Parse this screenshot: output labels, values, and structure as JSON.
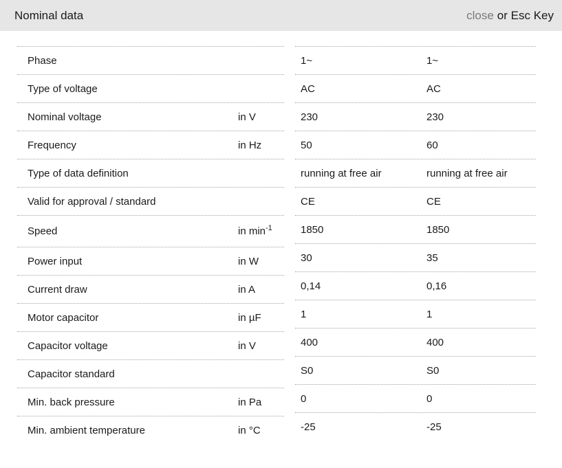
{
  "header": {
    "title": "Nominal data",
    "close_label": "close",
    "esc_label": "or Esc Key"
  },
  "colors": {
    "header_bg": "#e6e6e6",
    "close_link": "#7a7a7a",
    "text": "#1a1a1a",
    "divider": "#a3a3a3"
  },
  "table": {
    "rows": [
      {
        "label": "Phase",
        "unit": "",
        "values": [
          "1~",
          "1~"
        ]
      },
      {
        "label": "Type of voltage",
        "unit": "",
        "values": [
          "AC",
          "AC"
        ]
      },
      {
        "label": "Nominal voltage",
        "unit": "in V",
        "values": [
          "230",
          "230"
        ]
      },
      {
        "label": "Frequency",
        "unit": "in Hz",
        "values": [
          "50",
          "60"
        ]
      },
      {
        "label": "Type of data definition",
        "unit": "",
        "values": [
          "running at free air",
          "running at free air"
        ]
      },
      {
        "label": "Valid for approval / standard",
        "unit": "",
        "values": [
          "CE",
          "CE"
        ]
      },
      {
        "label": "Speed",
        "unit": "in min",
        "unit_sup": "-1",
        "values": [
          "1850",
          "1850"
        ]
      },
      {
        "label": "Power input",
        "unit": "in W",
        "values": [
          "30",
          "35"
        ]
      },
      {
        "label": "Current draw",
        "unit": "in A",
        "values": [
          "0,14",
          "0,16"
        ]
      },
      {
        "label": "Motor capacitor",
        "unit": "in µF",
        "values": [
          "1",
          "1"
        ]
      },
      {
        "label": "Capacitor voltage",
        "unit": "in V",
        "values": [
          "400",
          "400"
        ]
      },
      {
        "label": "Capacitor standard",
        "unit": "",
        "values": [
          "S0",
          "S0"
        ]
      },
      {
        "label": "Min. back pressure",
        "unit": "in Pa",
        "values": [
          "0",
          "0"
        ]
      },
      {
        "label": "Min. ambient temperature",
        "unit": "in °C",
        "values": [
          "-25",
          "-25"
        ]
      }
    ]
  }
}
